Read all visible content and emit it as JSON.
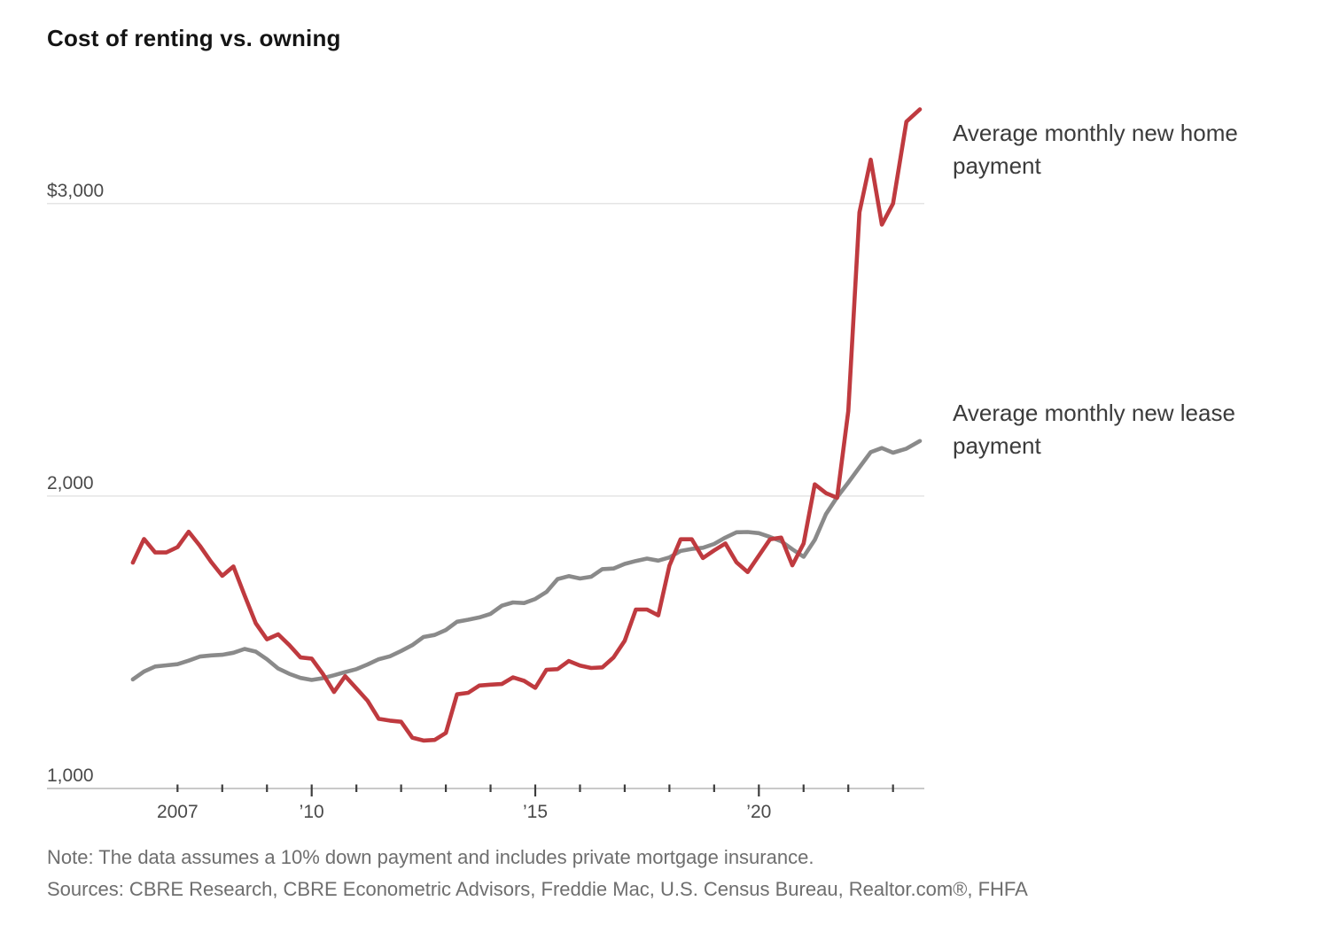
{
  "title": "Cost of renting vs. owning",
  "annotations": {
    "home": "Average monthly new home payment",
    "lease": "Average monthly new lease payment"
  },
  "footer": {
    "note": "Note: The data assumes a 10% down payment and includes private mortgage insurance.",
    "sources": "Sources: CBRE Research, CBRE Econometric Advisors, Freddie Mac, U.S. Census Bureau, Realtor.com®, FHFA"
  },
  "colors": {
    "home_line": "#bf3a3f",
    "lease_line": "#8a8a8a",
    "gridline": "#e4e4e4",
    "axis_line": "#c9c9c9",
    "tick": "#3d3d3d"
  },
  "chart_data": {
    "type": "line",
    "title": "Cost of renting vs. owning",
    "xlabel": "",
    "ylabel": "",
    "grid": "horizontal",
    "legend_position": "direct-labels-right",
    "x_range": [
      2005.9,
      2023.75
    ],
    "y_range": [
      1000,
      3500
    ],
    "y_axis": {
      "ticks": [
        {
          "value": 3000,
          "label": "$3,000"
        },
        {
          "value": 2000,
          "label": "2,000"
        },
        {
          "value": 1000,
          "label": "1,000"
        }
      ]
    },
    "x_axis": {
      "ticks": [
        2007,
        2008,
        2009,
        2010,
        2011,
        2012,
        2013,
        2014,
        2015,
        2016,
        2017,
        2018,
        2019,
        2020,
        2021,
        2022,
        2023
      ],
      "long_ticks": [
        2010,
        2015,
        2020
      ],
      "labels": [
        {
          "year": 2007,
          "text": "2007"
        },
        {
          "year": 2010,
          "text": "’10"
        },
        {
          "year": 2015,
          "text": "’15"
        },
        {
          "year": 2020,
          "text": "’20"
        }
      ]
    },
    "series": [
      {
        "name": "Average monthly new lease payment",
        "color": "#8a8a8a",
        "points": [
          [
            2006.0,
            1373
          ],
          [
            2006.25,
            1400
          ],
          [
            2006.5,
            1417
          ],
          [
            2006.75,
            1421
          ],
          [
            2007.0,
            1425
          ],
          [
            2007.25,
            1437
          ],
          [
            2007.5,
            1451
          ],
          [
            2007.75,
            1455
          ],
          [
            2008.0,
            1457
          ],
          [
            2008.25,
            1464
          ],
          [
            2008.5,
            1477
          ],
          [
            2008.75,
            1468
          ],
          [
            2009.0,
            1442
          ],
          [
            2009.25,
            1410
          ],
          [
            2009.5,
            1392
          ],
          [
            2009.75,
            1378
          ],
          [
            2010.0,
            1371
          ],
          [
            2010.25,
            1377
          ],
          [
            2010.5,
            1387
          ],
          [
            2010.75,
            1398
          ],
          [
            2011.0,
            1408
          ],
          [
            2011.25,
            1424
          ],
          [
            2011.5,
            1442
          ],
          [
            2011.75,
            1452
          ],
          [
            2012.0,
            1470
          ],
          [
            2012.25,
            1490
          ],
          [
            2012.5,
            1518
          ],
          [
            2012.75,
            1525
          ],
          [
            2013.0,
            1542
          ],
          [
            2013.25,
            1570
          ],
          [
            2013.5,
            1577
          ],
          [
            2013.75,
            1585
          ],
          [
            2014.0,
            1597
          ],
          [
            2014.25,
            1625
          ],
          [
            2014.5,
            1636
          ],
          [
            2014.75,
            1634
          ],
          [
            2015.0,
            1648
          ],
          [
            2015.25,
            1672
          ],
          [
            2015.5,
            1716
          ],
          [
            2015.75,
            1726
          ],
          [
            2016.0,
            1718
          ],
          [
            2016.25,
            1724
          ],
          [
            2016.5,
            1750
          ],
          [
            2016.75,
            1752
          ],
          [
            2017.0,
            1768
          ],
          [
            2017.25,
            1778
          ],
          [
            2017.5,
            1786
          ],
          [
            2017.75,
            1779
          ],
          [
            2018.0,
            1790
          ],
          [
            2018.25,
            1812
          ],
          [
            2018.5,
            1819
          ],
          [
            2018.75,
            1823
          ],
          [
            2019.0,
            1836
          ],
          [
            2019.25,
            1858
          ],
          [
            2019.5,
            1876
          ],
          [
            2019.75,
            1877
          ],
          [
            2020.0,
            1873
          ],
          [
            2020.25,
            1860
          ],
          [
            2020.5,
            1845
          ],
          [
            2020.75,
            1818
          ],
          [
            2021.0,
            1792
          ],
          [
            2021.25,
            1850
          ],
          [
            2021.5,
            1938
          ],
          [
            2021.75,
            1996
          ],
          [
            2022.0,
            2046
          ],
          [
            2022.25,
            2098
          ],
          [
            2022.5,
            2150
          ],
          [
            2022.75,
            2164
          ],
          [
            2023.0,
            2148
          ],
          [
            2023.3,
            2162
          ],
          [
            2023.6,
            2188
          ]
        ]
      },
      {
        "name": "Average monthly new home payment",
        "color": "#bf3a3f",
        "points": [
          [
            2006.0,
            1772
          ],
          [
            2006.25,
            1853
          ],
          [
            2006.5,
            1807
          ],
          [
            2006.75,
            1807
          ],
          [
            2007.0,
            1825
          ],
          [
            2007.25,
            1878
          ],
          [
            2007.5,
            1830
          ],
          [
            2007.75,
            1775
          ],
          [
            2008.0,
            1727
          ],
          [
            2008.25,
            1759
          ],
          [
            2008.5,
            1660
          ],
          [
            2008.75,
            1565
          ],
          [
            2009.0,
            1510
          ],
          [
            2009.25,
            1527
          ],
          [
            2009.5,
            1490
          ],
          [
            2009.75,
            1448
          ],
          [
            2010.0,
            1444
          ],
          [
            2010.25,
            1392
          ],
          [
            2010.5,
            1330
          ],
          [
            2010.75,
            1384
          ],
          [
            2011.0,
            1342
          ],
          [
            2011.25,
            1300
          ],
          [
            2011.5,
            1238
          ],
          [
            2011.75,
            1232
          ],
          [
            2012.0,
            1228
          ],
          [
            2012.25,
            1174
          ],
          [
            2012.5,
            1164
          ],
          [
            2012.75,
            1166
          ],
          [
            2013.0,
            1190
          ],
          [
            2013.25,
            1322
          ],
          [
            2013.5,
            1327
          ],
          [
            2013.75,
            1352
          ],
          [
            2014.0,
            1355
          ],
          [
            2014.25,
            1357
          ],
          [
            2014.5,
            1380
          ],
          [
            2014.75,
            1368
          ],
          [
            2015.0,
            1344
          ],
          [
            2015.25,
            1406
          ],
          [
            2015.5,
            1408
          ],
          [
            2015.75,
            1436
          ],
          [
            2016.0,
            1420
          ],
          [
            2016.25,
            1412
          ],
          [
            2016.5,
            1414
          ],
          [
            2016.75,
            1448
          ],
          [
            2017.0,
            1505
          ],
          [
            2017.25,
            1612
          ],
          [
            2017.5,
            1612
          ],
          [
            2017.75,
            1592
          ],
          [
            2018.0,
            1762
          ],
          [
            2018.25,
            1852
          ],
          [
            2018.5,
            1852
          ],
          [
            2018.75,
            1788
          ],
          [
            2019.0,
            1814
          ],
          [
            2019.25,
            1838
          ],
          [
            2019.5,
            1773
          ],
          [
            2019.75,
            1740
          ],
          [
            2020.0,
            1796
          ],
          [
            2020.25,
            1852
          ],
          [
            2020.5,
            1858
          ],
          [
            2020.75,
            1763
          ],
          [
            2021.0,
            1838
          ],
          [
            2021.25,
            2040
          ],
          [
            2021.5,
            2010
          ],
          [
            2021.75,
            1994
          ],
          [
            2022.0,
            2290
          ],
          [
            2022.25,
            2970
          ],
          [
            2022.5,
            3150
          ],
          [
            2022.75,
            2928
          ],
          [
            2023.0,
            3000
          ],
          [
            2023.3,
            3280
          ],
          [
            2023.6,
            3322
          ]
        ]
      }
    ]
  }
}
